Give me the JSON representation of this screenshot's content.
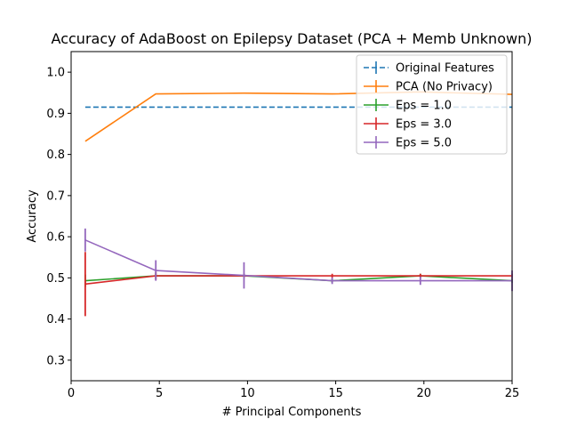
{
  "chart_data": {
    "type": "line",
    "title": "Accuracy of AdaBoost on Epilepsy Dataset (PCA + Memb Unknown)",
    "xlabel": "# Principal Components",
    "ylabel": "Accuracy",
    "xlim": [
      0,
      25
    ],
    "ylim": [
      0.25,
      1.05
    ],
    "xticks": [
      0,
      5,
      10,
      15,
      20,
      25
    ],
    "yticks": [
      0.3,
      0.4,
      0.5,
      0.6,
      0.7,
      0.8,
      0.9,
      1.0
    ],
    "grid": false,
    "legend_position": "top-right",
    "series": [
      {
        "name": "Original Features",
        "color": "#1f77b4",
        "style": "dashed",
        "x": [
          0.8,
          25
        ],
        "y": [
          0.915,
          0.915
        ],
        "yerr": [
          0,
          0
        ]
      },
      {
        "name": "PCA (No Privacy)",
        "color": "#ff7f0e",
        "style": "solid",
        "x": [
          0.8,
          4.8,
          9.8,
          14.8,
          19.8,
          25
        ],
        "y": [
          0.832,
          0.947,
          0.949,
          0.947,
          0.952,
          0.946
        ],
        "yerr": [
          0,
          0,
          0,
          0,
          0,
          0
        ]
      },
      {
        "name": "Eps = 1.0",
        "color": "#2ca02c",
        "style": "solid",
        "x": [
          0.8,
          4.8,
          9.8,
          14.8,
          19.8,
          25
        ],
        "y": [
          0.493,
          0.505,
          0.505,
          0.493,
          0.505,
          0.493
        ],
        "yerr": [
          0.015,
          0.008,
          0.005,
          0.005,
          0.005,
          0.005
        ]
      },
      {
        "name": "Eps = 3.0",
        "color": "#d62728",
        "style": "solid",
        "x": [
          0.8,
          4.8,
          9.8,
          14.8,
          19.8,
          25
        ],
        "y": [
          0.485,
          0.505,
          0.505,
          0.505,
          0.505,
          0.505
        ],
        "yerr": [
          0.078,
          0.01,
          0.005,
          0.005,
          0.005,
          0.005
        ]
      },
      {
        "name": "Eps = 5.0",
        "color": "#9467bd",
        "style": "solid",
        "x": [
          0.8,
          4.8,
          9.8,
          14.8,
          19.8,
          25
        ],
        "y": [
          0.592,
          0.518,
          0.506,
          0.493,
          0.493,
          0.493
        ],
        "yerr": [
          0.028,
          0.025,
          0.032,
          0.008,
          0.01,
          0.025
        ]
      }
    ]
  }
}
